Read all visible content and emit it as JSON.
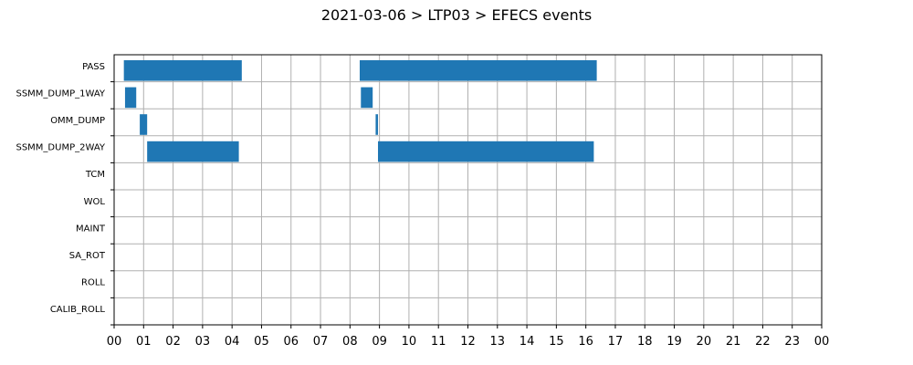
{
  "chart_data": {
    "type": "bar",
    "orientation": "horizontal-timeline",
    "title": "2021-03-06 > LTP03 > EFECS events",
    "xlabel": "",
    "ylabel": "",
    "x_unit": "hours",
    "xlim": [
      0,
      24
    ],
    "x_ticks": [
      "00",
      "01",
      "02",
      "03",
      "04",
      "05",
      "06",
      "07",
      "08",
      "09",
      "10",
      "11",
      "12",
      "13",
      "14",
      "15",
      "16",
      "17",
      "18",
      "19",
      "20",
      "21",
      "22",
      "23",
      "00"
    ],
    "grid": true,
    "bar_color": "#1f77b4",
    "categories": [
      "PASS",
      "SSMM_DUMP_1WAY",
      "OMM_DUMP",
      "SSMM_DUMP_2WAY",
      "TCM",
      "WOL",
      "MAINT",
      "SA_ROT",
      "ROLL",
      "CALIB_ROLL"
    ],
    "series": [
      {
        "category": "PASS",
        "intervals": [
          [
            0.33,
            4.33
          ],
          [
            8.33,
            16.37
          ]
        ]
      },
      {
        "category": "SSMM_DUMP_1WAY",
        "intervals": [
          [
            0.37,
            0.75
          ],
          [
            8.37,
            8.77
          ]
        ]
      },
      {
        "category": "OMM_DUMP",
        "intervals": [
          [
            0.87,
            1.12
          ],
          [
            8.87,
            8.95
          ]
        ]
      },
      {
        "category": "SSMM_DUMP_2WAY",
        "intervals": [
          [
            1.12,
            4.23
          ],
          [
            8.95,
            16.27
          ]
        ]
      },
      {
        "category": "TCM",
        "intervals": []
      },
      {
        "category": "WOL",
        "intervals": []
      },
      {
        "category": "MAINT",
        "intervals": []
      },
      {
        "category": "SA_ROT",
        "intervals": []
      },
      {
        "category": "ROLL",
        "intervals": []
      },
      {
        "category": "CALIB_ROLL",
        "intervals": []
      }
    ]
  }
}
